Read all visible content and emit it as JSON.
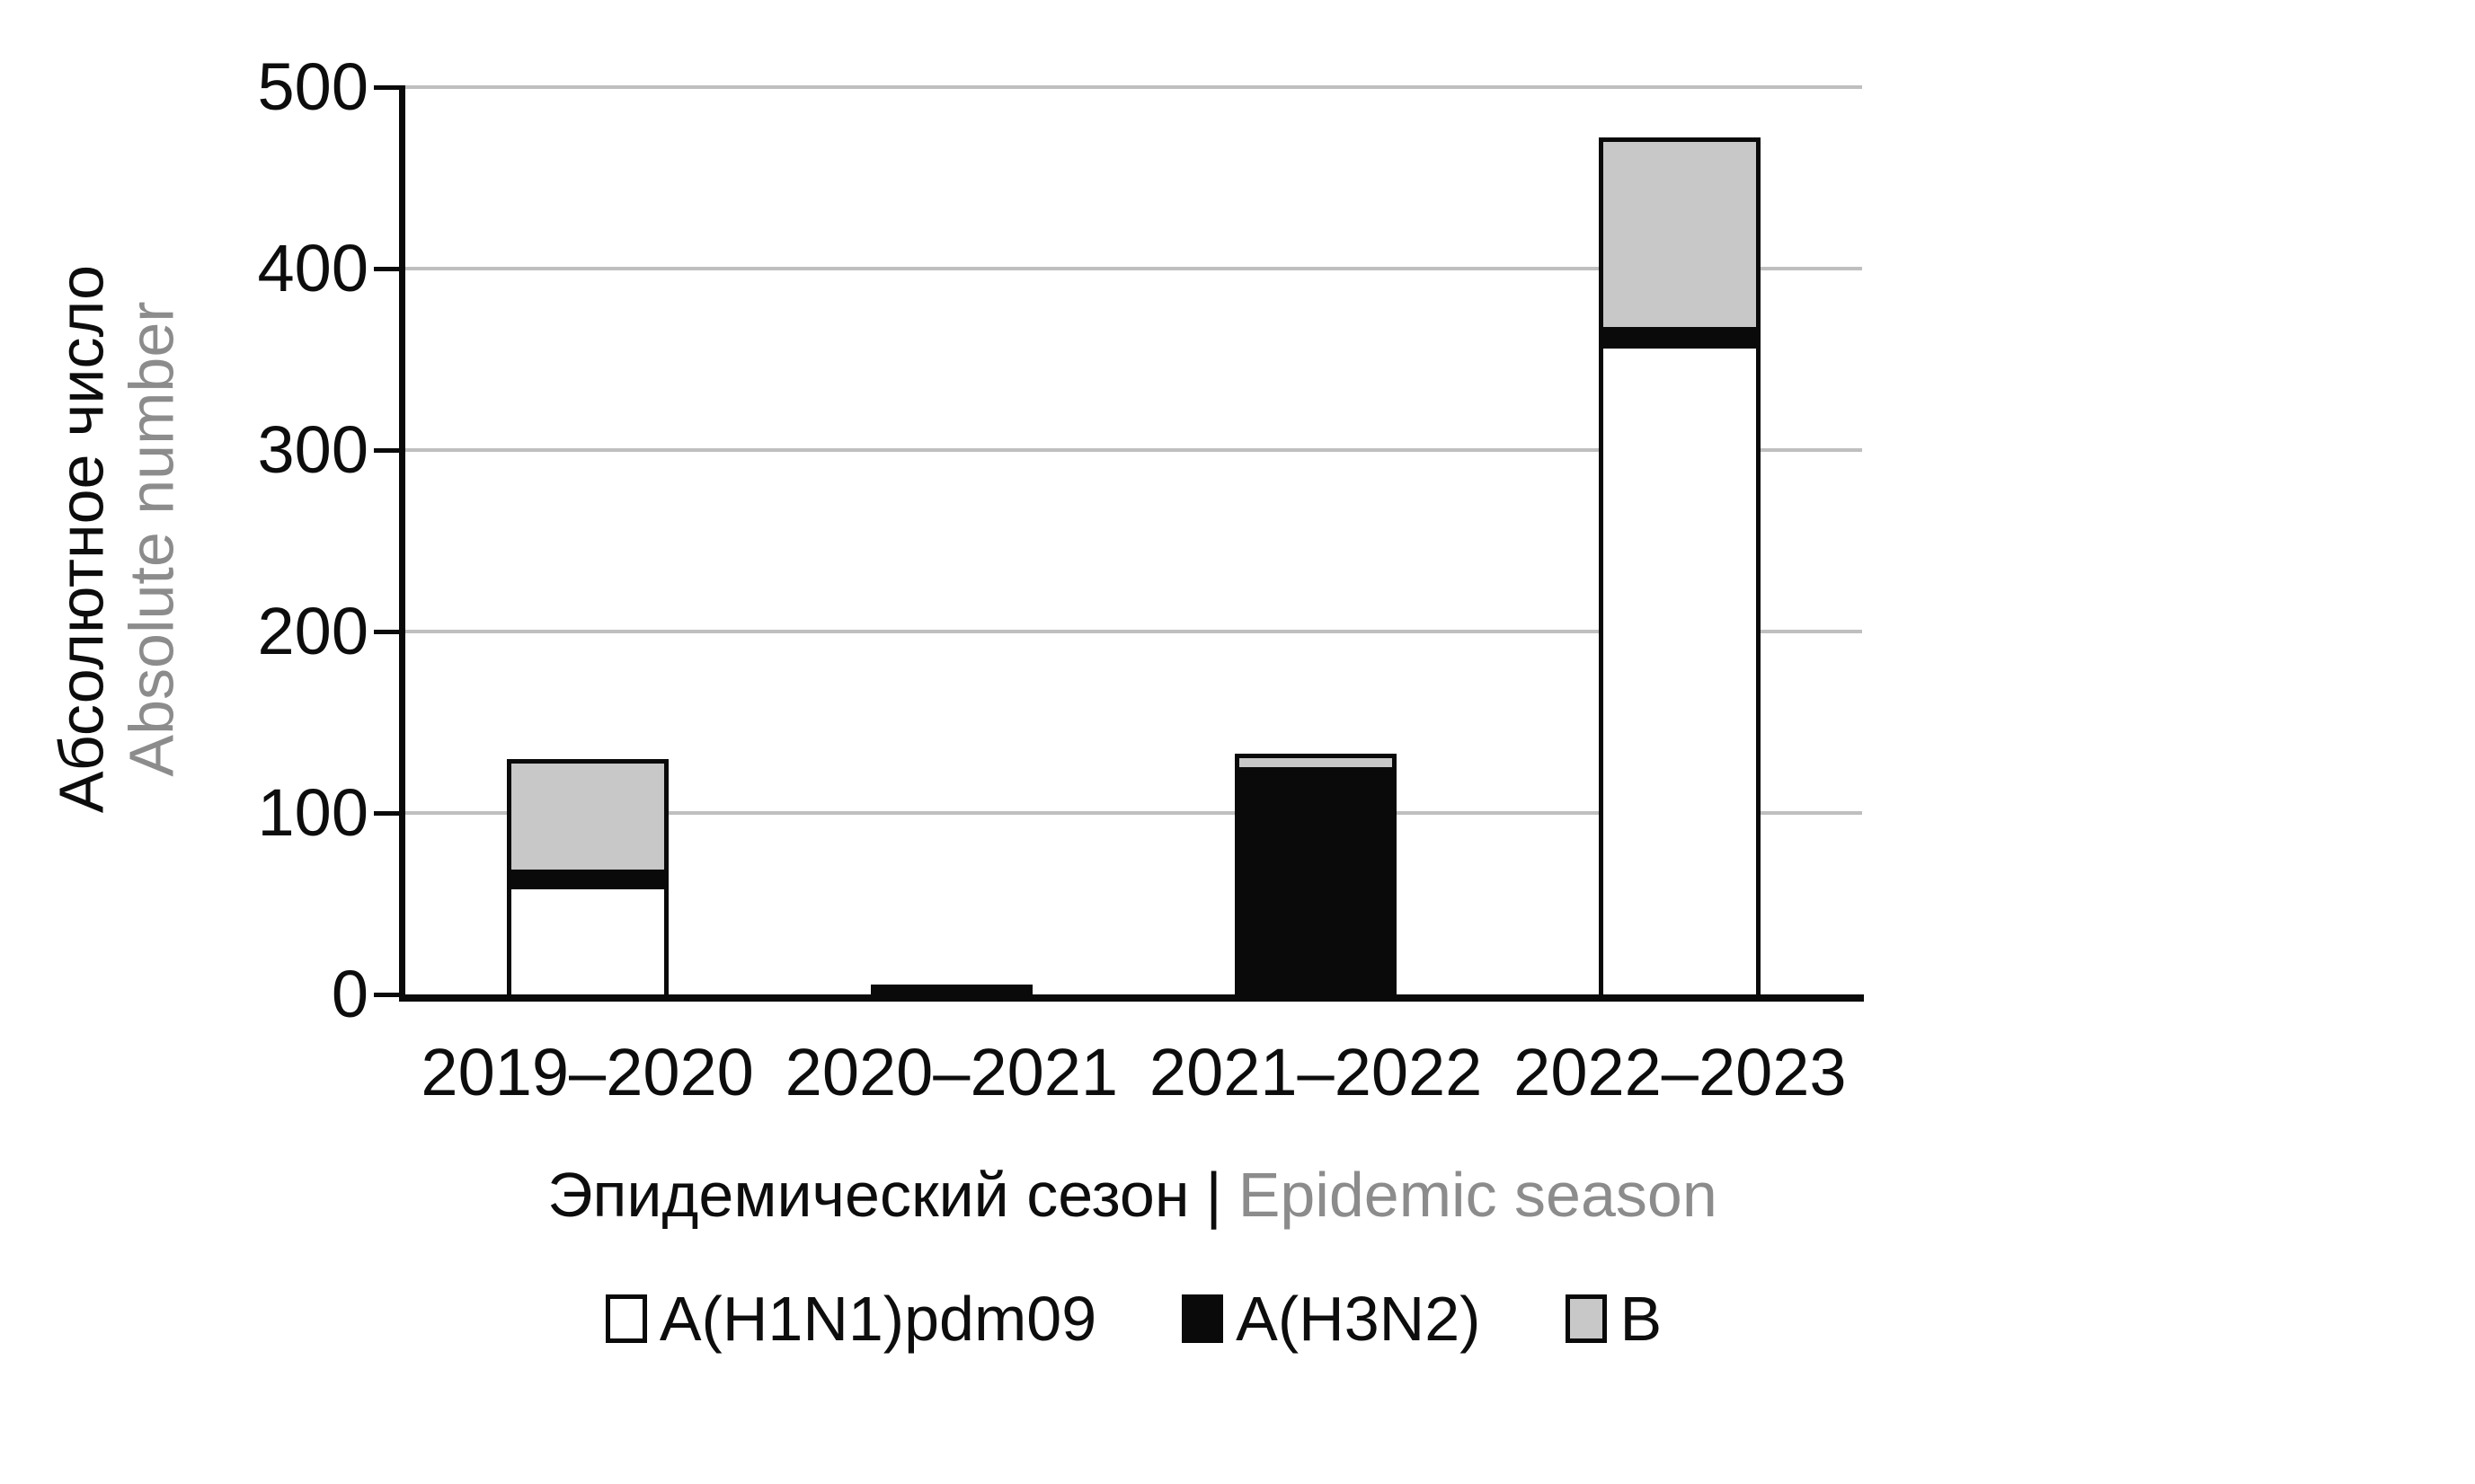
{
  "colors": {
    "series_white": "#ffffff",
    "series_black": "#0a0a0a",
    "series_gray": "#c8c8c8",
    "gridline": "#bfbfbf",
    "axis": "#0a0a0a",
    "text_primary": "#0d0d0d",
    "text_secondary": "#8c8c8c"
  },
  "y_axis": {
    "title_ru": "Абсолютное число",
    "title_en": "Absolute number",
    "tick_labels": [
      "0",
      "100",
      "200",
      "300",
      "400",
      "500"
    ]
  },
  "x_axis": {
    "title_ru": "Эпидемический сезон",
    "separator": "|",
    "title_en": "Epidemic season"
  },
  "legend": {
    "items": [
      {
        "label": "A(H1N1)pdm09",
        "color": "#ffffff"
      },
      {
        "label": "A(H3N2)",
        "color": "#0a0a0a"
      },
      {
        "label": "B",
        "color": "#c8c8c8"
      }
    ]
  },
  "chart_data": {
    "type": "bar",
    "stacked": true,
    "title": "",
    "xlabel": "Эпидемический сезон | Epidemic season",
    "ylabel": "Абсолютное число | Absolute number",
    "categories": [
      "2019–2020",
      "2020–2021",
      "2021–2022",
      "2022–2023"
    ],
    "series": [
      {
        "name": "A(H1N1)pdm09",
        "color": "#ffffff",
        "values": [
          58,
          0,
          0,
          356
        ]
      },
      {
        "name": "A(H3N2)",
        "color": "#0a0a0a",
        "values": [
          11,
          3,
          125,
          12
        ]
      },
      {
        "name": "B",
        "color": "#c8c8c8",
        "values": [
          58,
          0,
          5,
          102
        ]
      }
    ],
    "totals": [
      127,
      3,
      130,
      470
    ],
    "ylim": [
      0,
      500
    ],
    "yticks": [
      0,
      100,
      200,
      300,
      400,
      500
    ],
    "grid": true,
    "legend_position": "bottom"
  }
}
